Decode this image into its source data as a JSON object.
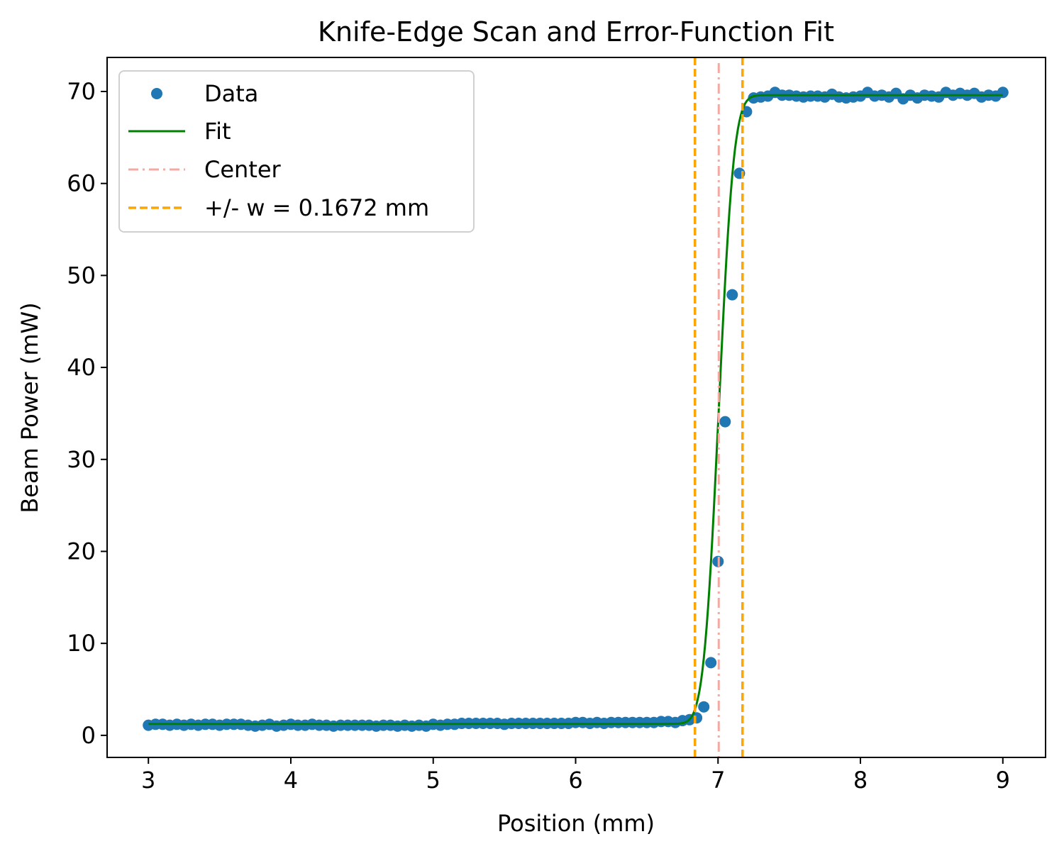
{
  "chart_data": {
    "type": "scatter",
    "title": "Knife-Edge Scan and Error-Function Fit",
    "xlabel": "Position (mm)",
    "ylabel": "Beam Power (mW)",
    "xlim": [
      2.71,
      9.3
    ],
    "ylim": [
      -2.4,
      73.7
    ],
    "xticks": [
      3,
      4,
      5,
      6,
      7,
      8,
      9
    ],
    "yticks": [
      0,
      10,
      20,
      30,
      40,
      50,
      60,
      70
    ],
    "grid": false,
    "legend_position": "upper-left",
    "colors": {
      "data": "#1f77b4",
      "fit": "#008000",
      "center": "#f4aaa3",
      "width": "#ffa500"
    },
    "series": [
      {
        "name": "Data",
        "kind": "scatter",
        "x_start": 3.0,
        "x_step": 0.05,
        "y": [
          1.1,
          1.2,
          1.2,
          1.1,
          1.2,
          1.1,
          1.2,
          1.1,
          1.2,
          1.2,
          1.1,
          1.2,
          1.2,
          1.2,
          1.1,
          1.0,
          1.1,
          1.2,
          1.0,
          1.1,
          1.2,
          1.1,
          1.1,
          1.2,
          1.1,
          1.1,
          1.0,
          1.1,
          1.1,
          1.1,
          1.1,
          1.1,
          1.0,
          1.1,
          1.1,
          1.0,
          1.1,
          1.0,
          1.1,
          1.0,
          1.2,
          1.1,
          1.2,
          1.2,
          1.3,
          1.3,
          1.3,
          1.3,
          1.3,
          1.3,
          1.2,
          1.3,
          1.3,
          1.3,
          1.3,
          1.3,
          1.3,
          1.3,
          1.3,
          1.3,
          1.4,
          1.4,
          1.3,
          1.4,
          1.3,
          1.4,
          1.4,
          1.4,
          1.4,
          1.4,
          1.4,
          1.4,
          1.5,
          1.5,
          1.4,
          1.6,
          1.7,
          1.9,
          3.1,
          7.9,
          18.9,
          34.1,
          47.9,
          61.1,
          67.8,
          69.3,
          69.4,
          69.5,
          69.9,
          69.6,
          69.6,
          69.5,
          69.4,
          69.5,
          69.5,
          69.4,
          69.7,
          69.4,
          69.3,
          69.4,
          69.5,
          69.9,
          69.5,
          69.6,
          69.4,
          69.8,
          69.2,
          69.6,
          69.3,
          69.6,
          69.5,
          69.4,
          69.9,
          69.6,
          69.8,
          69.6,
          69.8,
          69.4,
          69.6,
          69.5,
          69.9
        ]
      },
      {
        "name": "Fit",
        "kind": "line",
        "model": "erf",
        "x_range": [
          3.0,
          9.0
        ],
        "baseline": 1.25,
        "amplitude": 68.35,
        "center": 7.005,
        "sigma": 0.0836
      },
      {
        "name": "Center",
        "kind": "vline",
        "x": 7.005
      },
      {
        "name": "+/- w = 0.1672 mm",
        "kind": "vline-pair",
        "x": [
          6.838,
          7.172
        ]
      }
    ]
  }
}
